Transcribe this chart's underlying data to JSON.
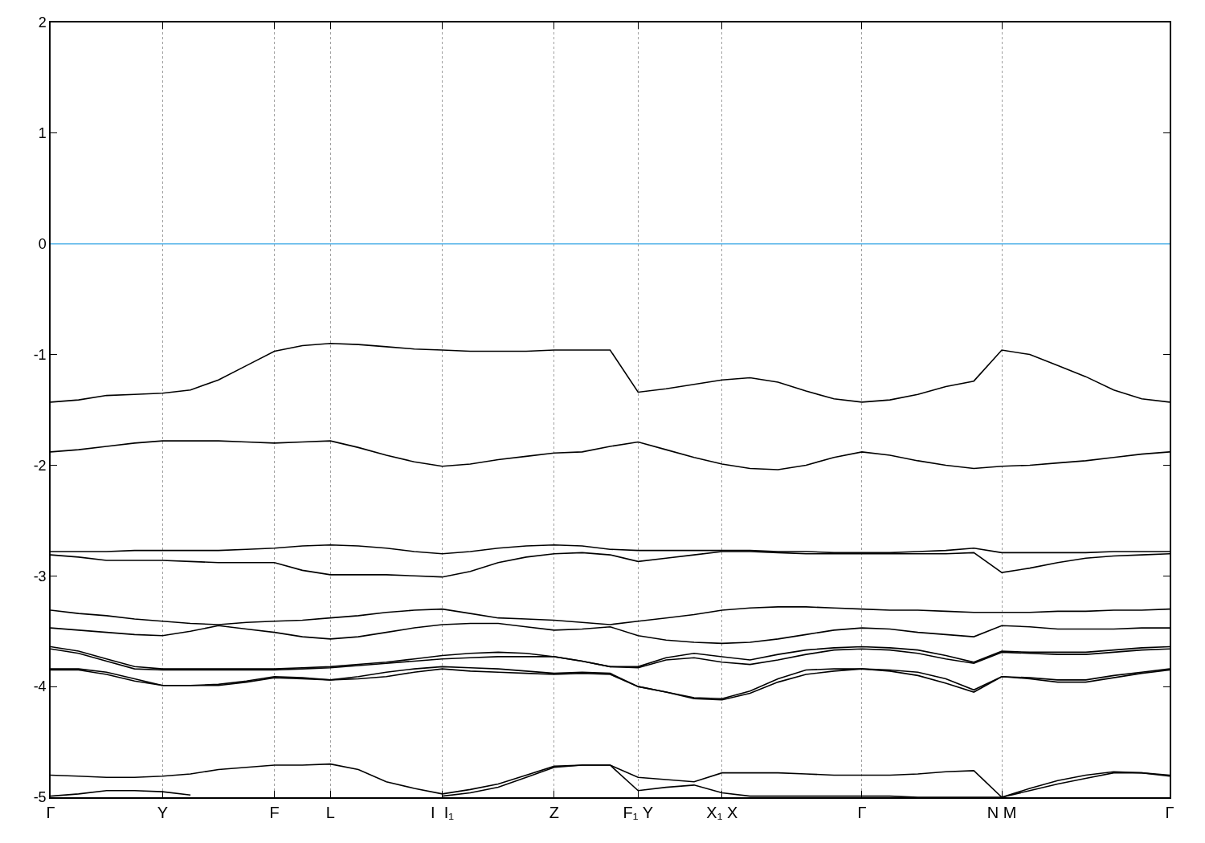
{
  "chart_data": {
    "type": "line",
    "categories": [
      "Γ",
      null,
      null,
      null,
      "Y",
      null,
      null,
      null,
      "F",
      null,
      "L",
      null,
      null,
      null,
      "I  I₁",
      null,
      null,
      null,
      "Z",
      null,
      null,
      "F₁ Y",
      null,
      null,
      "X₁ X",
      null,
      null,
      null,
      null,
      "Γ",
      null,
      null,
      null,
      null,
      "N M",
      null,
      null,
      null,
      null,
      null,
      "Γ"
    ],
    "ylim": [
      -5,
      2
    ],
    "yticks": [
      -5,
      -4,
      -3,
      -2,
      -1,
      0,
      1,
      2
    ],
    "grid": "x",
    "marker": "none",
    "line_style": "solid",
    "ref_lines": [
      {
        "axis": "y",
        "value": 0,
        "color": "#56b4e9"
      }
    ],
    "series": [
      {
        "color": "#000000",
        "values": [
          -1.43,
          -1.41,
          -1.37,
          -1.36,
          -1.35,
          -1.32,
          -1.23,
          -1.1,
          -0.97,
          -0.92,
          -0.9,
          -0.91,
          -0.93,
          -0.95,
          -0.96,
          -0.97,
          -0.97,
          -0.97,
          -0.96,
          -0.96,
          -0.96,
          -1.34,
          -1.31,
          -1.27,
          -1.23,
          -1.21,
          -1.25,
          -1.33,
          -1.4,
          -1.43,
          -1.41,
          -1.36,
          -1.29,
          -1.24,
          -0.96,
          -1.0,
          -1.1,
          -1.2,
          -1.32,
          -1.4,
          -1.43
        ]
      },
      {
        "color": "#000000",
        "values": [
          -1.88,
          -1.86,
          -1.83,
          -1.8,
          -1.78,
          -1.78,
          -1.78,
          -1.79,
          -1.8,
          -1.79,
          -1.78,
          -1.84,
          -1.91,
          -1.97,
          -2.01,
          -1.99,
          -1.95,
          -1.92,
          -1.89,
          -1.88,
          -1.83,
          -1.79,
          -1.86,
          -1.93,
          -1.99,
          -2.03,
          -2.04,
          -2.0,
          -1.93,
          -1.88,
          -1.91,
          -1.96,
          -2.0,
          -2.03,
          -2.01,
          -2.0,
          -1.98,
          -1.96,
          -1.93,
          -1.9,
          -1.88
        ]
      },
      {
        "color": "#000000",
        "values": [
          -2.78,
          -2.78,
          -2.78,
          -2.77,
          -2.77,
          -2.77,
          -2.77,
          -2.76,
          -2.75,
          -2.73,
          -2.72,
          -2.73,
          -2.75,
          -2.78,
          -2.8,
          -2.78,
          -2.75,
          -2.73,
          -2.72,
          -2.73,
          -2.76,
          -2.77,
          -2.77,
          -2.77,
          -2.77,
          -2.77,
          -2.78,
          -2.78,
          -2.79,
          -2.79,
          -2.79,
          -2.78,
          -2.77,
          -2.75,
          -2.79,
          -2.79,
          -2.79,
          -2.79,
          -2.78,
          -2.78,
          -2.78
        ]
      },
      {
        "color": "#000000",
        "values": [
          -2.81,
          -2.83,
          -2.86,
          -2.86,
          -2.86,
          -2.87,
          -2.88,
          -2.88,
          -2.88,
          -2.95,
          -2.99,
          -2.99,
          -2.99,
          -3.0,
          -3.01,
          -2.96,
          -2.88,
          -2.83,
          -2.8,
          -2.79,
          -2.81,
          -2.87,
          -2.84,
          -2.81,
          -2.78,
          -2.78,
          -2.79,
          -2.8,
          -2.8,
          -2.8,
          -2.8,
          -2.8,
          -2.8,
          -2.79,
          -2.97,
          -2.93,
          -2.88,
          -2.84,
          -2.82,
          -2.81,
          -2.8
        ]
      },
      {
        "color": "#000000",
        "values": [
          -3.31,
          -3.34,
          -3.36,
          -3.39,
          -3.41,
          -3.43,
          -3.44,
          -3.42,
          -3.41,
          -3.4,
          -3.38,
          -3.36,
          -3.33,
          -3.31,
          -3.3,
          -3.34,
          -3.38,
          -3.39,
          -3.4,
          -3.42,
          -3.44,
          -3.41,
          -3.38,
          -3.35,
          -3.31,
          -3.29,
          -3.28,
          -3.28,
          -3.29,
          -3.3,
          -3.31,
          -3.31,
          -3.32,
          -3.33,
          -3.33,
          -3.33,
          -3.32,
          -3.32,
          -3.31,
          -3.31,
          -3.3
        ]
      },
      {
        "color": "#000000",
        "values": [
          -3.47,
          -3.49,
          -3.51,
          -3.53,
          -3.54,
          -3.5,
          -3.45,
          -3.48,
          -3.51,
          -3.55,
          -3.57,
          -3.55,
          -3.51,
          -3.47,
          -3.44,
          -3.43,
          -3.43,
          -3.46,
          -3.49,
          -3.48,
          -3.46,
          -3.54,
          -3.58,
          -3.6,
          -3.61,
          -3.6,
          -3.57,
          -3.53,
          -3.49,
          -3.47,
          -3.48,
          -3.51,
          -3.53,
          -3.55,
          -3.45,
          -3.46,
          -3.48,
          -3.48,
          -3.48,
          -3.47,
          -3.47
        ]
      },
      {
        "color": "#000000",
        "values": [
          -3.64,
          -3.68,
          -3.75,
          -3.82,
          -3.84,
          -3.84,
          -3.84,
          -3.84,
          -3.84,
          -3.83,
          -3.82,
          -3.8,
          -3.78,
          -3.75,
          -3.72,
          -3.7,
          -3.69,
          -3.7,
          -3.73,
          -3.77,
          -3.82,
          -3.82,
          -3.74,
          -3.7,
          -3.73,
          -3.76,
          -3.71,
          -3.67,
          -3.65,
          -3.64,
          -3.65,
          -3.67,
          -3.72,
          -3.78,
          -3.68,
          -3.69,
          -3.69,
          -3.69,
          -3.67,
          -3.65,
          -3.64
        ]
      },
      {
        "color": "#000000",
        "values": [
          -3.66,
          -3.7,
          -3.77,
          -3.84,
          -3.85,
          -3.85,
          -3.85,
          -3.85,
          -3.85,
          -3.84,
          -3.83,
          -3.81,
          -3.79,
          -3.77,
          -3.75,
          -3.74,
          -3.73,
          -3.73,
          -3.73,
          -3.77,
          -3.82,
          -3.83,
          -3.76,
          -3.74,
          -3.78,
          -3.8,
          -3.76,
          -3.71,
          -3.67,
          -3.66,
          -3.67,
          -3.7,
          -3.75,
          -3.79,
          -3.69,
          -3.7,
          -3.71,
          -3.71,
          -3.69,
          -3.67,
          -3.66
        ]
      },
      {
        "color": "#000000",
        "values": [
          -3.84,
          -3.84,
          -3.87,
          -3.93,
          -3.99,
          -3.99,
          -3.98,
          -3.95,
          -3.91,
          -3.92,
          -3.94,
          -3.91,
          -3.87,
          -3.84,
          -3.82,
          -3.83,
          -3.84,
          -3.86,
          -3.88,
          -3.87,
          -3.88,
          -4.0,
          -4.05,
          -4.1,
          -4.11,
          -4.04,
          -3.93,
          -3.85,
          -3.84,
          -3.84,
          -3.85,
          -3.87,
          -3.93,
          -4.03,
          -3.91,
          -3.92,
          -3.94,
          -3.94,
          -3.9,
          -3.87,
          -3.84
        ]
      },
      {
        "color": "#000000",
        "values": [
          -3.85,
          -3.85,
          -3.89,
          -3.95,
          -3.99,
          -3.99,
          -3.99,
          -3.96,
          -3.92,
          -3.93,
          -3.94,
          -3.93,
          -3.91,
          -3.87,
          -3.84,
          -3.86,
          -3.87,
          -3.88,
          -3.89,
          -3.88,
          -3.89,
          -4.0,
          -4.05,
          -4.11,
          -4.12,
          -4.06,
          -3.96,
          -3.89,
          -3.86,
          -3.84,
          -3.86,
          -3.9,
          -3.97,
          -4.05,
          -3.91,
          -3.93,
          -3.96,
          -3.96,
          -3.92,
          -3.88,
          -3.85
        ]
      },
      {
        "color": "#000000",
        "values": [
          -4.8,
          -4.81,
          -4.82,
          -4.82,
          -4.81,
          -4.79,
          -4.75,
          -4.73,
          -4.71,
          -4.71,
          -4.7,
          -4.75,
          -4.86,
          -4.92,
          -4.97,
          -4.93,
          -4.88,
          -4.8,
          -4.72,
          -4.71,
          -4.71,
          -4.82,
          -4.84,
          -4.86,
          -4.78,
          -4.78,
          -4.78,
          -4.79,
          -4.8,
          -4.8,
          -4.8,
          -4.79,
          -4.77,
          -4.76,
          -5.0,
          -4.92,
          -4.85,
          -4.8,
          -4.77,
          -4.78,
          -4.8
        ]
      },
      {
        "color": "#000000",
        "values": [
          -4.99,
          -4.97,
          -4.94,
          -4.94,
          -4.95,
          -4.98,
          null,
          null,
          null,
          null,
          null,
          null,
          null,
          null,
          -4.99,
          -4.96,
          -4.91,
          -4.82,
          -4.73,
          -4.71,
          -4.71,
          -4.94,
          -4.91,
          -4.89,
          -4.96,
          -4.99,
          -4.99,
          -4.99,
          -4.99,
          -4.99,
          -4.99,
          -5.0,
          -5.0,
          -5.0,
          -5.0,
          -4.94,
          -4.88,
          -4.83,
          -4.78,
          -4.78,
          -4.81
        ]
      }
    ]
  }
}
